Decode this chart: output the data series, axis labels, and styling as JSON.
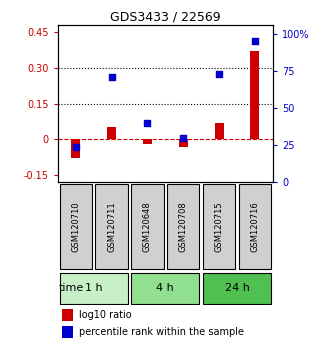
{
  "title": "GDS3433 / 22569",
  "samples": [
    "GSM120710",
    "GSM120711",
    "GSM120648",
    "GSM120708",
    "GSM120715",
    "GSM120716"
  ],
  "log10_ratio": [
    -0.08,
    0.05,
    -0.02,
    -0.03,
    0.07,
    0.37
  ],
  "percentile_rank": [
    24,
    71,
    40,
    30,
    73,
    95
  ],
  "groups": [
    {
      "label": "1 h",
      "indices": [
        0,
        1
      ],
      "color": "#c8f0c8"
    },
    {
      "label": "4 h",
      "indices": [
        2,
        3
      ],
      "color": "#90e090"
    },
    {
      "label": "24 h",
      "indices": [
        4,
        5
      ],
      "color": "#50c050"
    }
  ],
  "ylim_left": [
    -0.18,
    0.48
  ],
  "ylim_right": [
    0,
    106
  ],
  "yticks_left": [
    -0.15,
    0,
    0.15,
    0.3,
    0.45
  ],
  "yticks_right": [
    0,
    25,
    50,
    75,
    100
  ],
  "ytick_labels_left": [
    "-0.15",
    "0",
    "0.15",
    "0.30",
    "0.45"
  ],
  "ytick_labels_right": [
    "0",
    "25",
    "50",
    "75",
    "100%"
  ],
  "hlines": [
    0.15,
    0.3
  ],
  "bar_color": "#cc0000",
  "dot_color": "#0000cc",
  "zero_line_color": "#cc0000",
  "bg_color": "#ffffff",
  "sample_box_color": "#d0d0d0",
  "time_label": "time",
  "legend_ratio_label": "log10 ratio",
  "legend_pct_label": "percentile rank within the sample"
}
